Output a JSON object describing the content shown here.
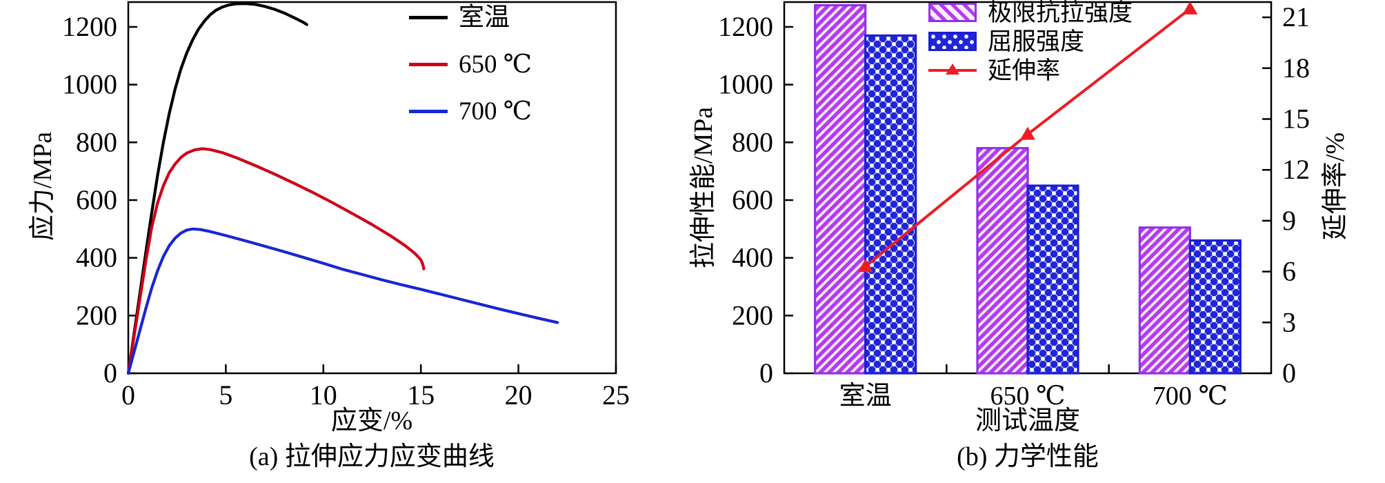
{
  "chart_data": [
    {
      "type": "line",
      "caption": "(a) 拉伸应力应变曲线",
      "xlabel": "应变/%",
      "ylabel": "应力/MPa",
      "xlim": [
        0,
        25
      ],
      "ylim": [
        0,
        1286
      ],
      "xticks": [
        0,
        5,
        10,
        15,
        20,
        25
      ],
      "yticks": [
        0,
        200,
        400,
        600,
        800,
        1000,
        1200
      ],
      "grid": false,
      "legend_position": "top-right-inside",
      "series": [
        {
          "name": "室温",
          "color": "#000000",
          "points": [
            [
              0,
              0
            ],
            [
              0.3,
              140
            ],
            [
              0.6,
              280
            ],
            [
              0.9,
              420
            ],
            [
              1.2,
              555
            ],
            [
              1.5,
              685
            ],
            [
              1.8,
              800
            ],
            [
              2.1,
              900
            ],
            [
              2.4,
              985
            ],
            [
              2.7,
              1055
            ],
            [
              3.0,
              1110
            ],
            [
              3.3,
              1155
            ],
            [
              3.6,
              1192
            ],
            [
              3.9,
              1220
            ],
            [
              4.2,
              1242
            ],
            [
              4.5,
              1258
            ],
            [
              4.8,
              1268
            ],
            [
              5.1,
              1275
            ],
            [
              5.5,
              1280
            ],
            [
              6.0,
              1281
            ],
            [
              6.5,
              1278
            ],
            [
              7.0,
              1271
            ],
            [
              7.5,
              1261
            ],
            [
              8.0,
              1248
            ],
            [
              8.5,
              1232
            ],
            [
              9.0,
              1215
            ],
            [
              9.15,
              1208
            ]
          ]
        },
        {
          "name": "650 ℃",
          "color": "#cf0018",
          "points": [
            [
              0,
              0
            ],
            [
              0.3,
              130
            ],
            [
              0.6,
              260
            ],
            [
              0.9,
              390
            ],
            [
              1.2,
              505
            ],
            [
              1.5,
              590
            ],
            [
              1.8,
              650
            ],
            [
              2.1,
              695
            ],
            [
              2.4,
              725
            ],
            [
              2.7,
              748
            ],
            [
              3.0,
              763
            ],
            [
              3.4,
              774
            ],
            [
              3.8,
              778
            ],
            [
              4.2,
              775
            ],
            [
              4.8,
              765
            ],
            [
              5.5,
              748
            ],
            [
              6.5,
              720
            ],
            [
              7.5,
              690
            ],
            [
              8.5,
              658
            ],
            [
              9.5,
              625
            ],
            [
              10.5,
              590
            ],
            [
              11.5,
              553
            ],
            [
              12.5,
              515
            ],
            [
              13.5,
              474
            ],
            [
              14.2,
              442
            ],
            [
              14.7,
              415
            ],
            [
              15.0,
              393
            ],
            [
              15.1,
              378
            ],
            [
              15.15,
              362
            ]
          ]
        },
        {
          "name": "700 ℃",
          "color": "#1726d3",
          "points": [
            [
              0,
              0
            ],
            [
              0.3,
              75
            ],
            [
              0.6,
              150
            ],
            [
              0.9,
              225
            ],
            [
              1.2,
              295
            ],
            [
              1.5,
              355
            ],
            [
              1.8,
              405
            ],
            [
              2.1,
              442
            ],
            [
              2.4,
              468
            ],
            [
              2.7,
              486
            ],
            [
              3.0,
              496
            ],
            [
              3.3,
              500
            ],
            [
              3.7,
              498
            ],
            [
              4.2,
              491
            ],
            [
              5.0,
              477
            ],
            [
              6.0,
              459
            ],
            [
              7.0,
              440
            ],
            [
              8.0,
              421
            ],
            [
              9.0,
              401
            ],
            [
              10.0,
              381
            ],
            [
              11.0,
              360
            ],
            [
              12.0,
              342
            ],
            [
              13.0,
              324
            ],
            [
              14.0,
              307
            ],
            [
              15.0,
              291
            ],
            [
              16.0,
              274
            ],
            [
              17.0,
              257
            ],
            [
              18.0,
              240
            ],
            [
              19.0,
              223
            ],
            [
              20.0,
              207
            ],
            [
              21.0,
              191
            ],
            [
              22.0,
              176
            ]
          ]
        }
      ]
    },
    {
      "type": "bar",
      "caption": "(b) 力学性能",
      "xlabel": "测试温度",
      "ylabel_left": "拉伸性能/MPa",
      "ylabel_right": "延伸率/%",
      "categories": [
        "室温",
        "650 ℃",
        "700 ℃"
      ],
      "ylim_left": [
        0,
        1286
      ],
      "yticks_left": [
        0,
        200,
        400,
        600,
        800,
        1000,
        1200
      ],
      "ylim_right": [
        0,
        21.9
      ],
      "yticks_right": [
        0,
        3,
        6,
        9,
        12,
        15,
        18,
        21
      ],
      "grid": false,
      "legend_position": "top-inside",
      "bars": [
        {
          "name": "极限抗拉强度",
          "values": [
            1275,
            780,
            505
          ],
          "pattern": "diagonal-stripes",
          "fill": "#fdeefd",
          "hatch": "#b43cf0",
          "stroke": "#9130e6"
        },
        {
          "name": "屈服强度",
          "values": [
            1170,
            650,
            460
          ],
          "pattern": "dot-lattice",
          "fill": "#2026d8",
          "dot": "#ffffff",
          "stroke": "#1b1fd0"
        }
      ],
      "line": {
        "name": "延伸率",
        "values": [
          6.3,
          14.1,
          21.5
        ],
        "color": "#ed1c24",
        "marker": "triangle-up"
      }
    }
  ],
  "frame_color": "#000000"
}
